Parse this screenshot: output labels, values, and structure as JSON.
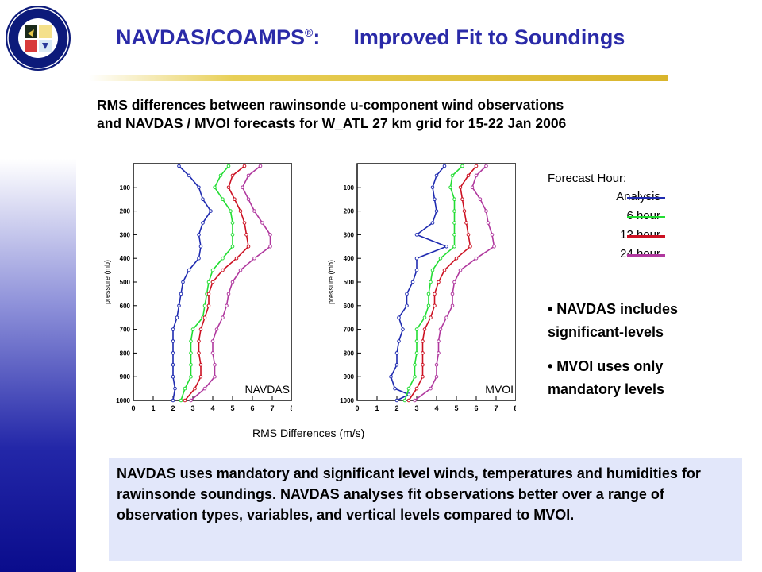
{
  "header": {
    "title_main": "NAVDAS/COAMPS",
    "title_reg": "®",
    "title_colon": ":",
    "title_right": "Improved Fit to Soundings"
  },
  "subtitle": {
    "line1": "RMS differences between rawinsonde u-component wind observations",
    "line2": "and NAVDAS / MVOI forecasts for W_ATL 27 km grid for 15-22 Jan 2006"
  },
  "x_caption": "RMS Differences (m/s)",
  "legend": {
    "title": "Forecast Hour:",
    "items": [
      {
        "label": "Analysis",
        "color": "#1f2bb0"
      },
      {
        "label": "6 hour",
        "color": "#22dd33"
      },
      {
        "label": "12 hour",
        "color": "#cc1122"
      },
      {
        "label": "24 hour",
        "color": "#b0389e"
      }
    ]
  },
  "bullets": [
    {
      "text": "• NAVDAS includes significant-levels"
    },
    {
      "text": "• MVOI uses only mandatory levels"
    }
  ],
  "note": "NAVDAS uses mandatory and significant level winds, temperatures and humidities for rawinsonde soundings.  NAVDAS analyses fit observations better over a range of observation types, variables, and vertical levels compared to MVOI.",
  "chart_data": [
    {
      "type": "line",
      "title": "",
      "label": "NAVDAS",
      "ylabel": "pressure (mb)",
      "xlabel": "",
      "xlim": [
        0,
        8
      ],
      "ylim": [
        1000,
        0
      ],
      "x_ticks": [
        "0",
        "1",
        "2",
        "3",
        "4",
        "5",
        "6",
        "7",
        "8"
      ],
      "y_ticks": [
        "100",
        "200",
        "300",
        "400",
        "500",
        "600",
        "700",
        "800",
        "900",
        "1000"
      ],
      "series": [
        {
          "color": "#1f2bb0",
          "points": [
            [
              2.3,
              10
            ],
            [
              2.8,
              50
            ],
            [
              3.3,
              100
            ],
            [
              3.5,
              150
            ],
            [
              3.9,
              200
            ],
            [
              3.5,
              250
            ],
            [
              3.3,
              300
            ],
            [
              3.4,
              350
            ],
            [
              3.3,
              400
            ],
            [
              2.8,
              450
            ],
            [
              2.5,
              500
            ],
            [
              2.4,
              550
            ],
            [
              2.3,
              600
            ],
            [
              2.2,
              650
            ],
            [
              2.0,
              700
            ],
            [
              2.0,
              750
            ],
            [
              2.0,
              800
            ],
            [
              2.0,
              850
            ],
            [
              2.0,
              900
            ],
            [
              2.1,
              950
            ],
            [
              2.0,
              1000
            ]
          ]
        },
        {
          "color": "#22dd33",
          "points": [
            [
              4.8,
              10
            ],
            [
              4.4,
              50
            ],
            [
              4.1,
              100
            ],
            [
              4.5,
              150
            ],
            [
              4.9,
              200
            ],
            [
              5.0,
              250
            ],
            [
              5.0,
              300
            ],
            [
              5.0,
              350
            ],
            [
              4.5,
              400
            ],
            [
              4.0,
              450
            ],
            [
              3.8,
              500
            ],
            [
              3.7,
              550
            ],
            [
              3.6,
              600
            ],
            [
              3.5,
              650
            ],
            [
              3.0,
              700
            ],
            [
              2.9,
              750
            ],
            [
              2.9,
              800
            ],
            [
              2.9,
              850
            ],
            [
              2.9,
              900
            ],
            [
              2.6,
              950
            ],
            [
              2.4,
              1000
            ]
          ]
        },
        {
          "color": "#cc1122",
          "points": [
            [
              5.6,
              10
            ],
            [
              5.0,
              50
            ],
            [
              4.8,
              100
            ],
            [
              5.1,
              150
            ],
            [
              5.4,
              200
            ],
            [
              5.6,
              250
            ],
            [
              5.7,
              300
            ],
            [
              5.8,
              350
            ],
            [
              5.2,
              400
            ],
            [
              4.5,
              450
            ],
            [
              4.0,
              500
            ],
            [
              3.8,
              550
            ],
            [
              3.8,
              600
            ],
            [
              3.6,
              650
            ],
            [
              3.4,
              700
            ],
            [
              3.3,
              750
            ],
            [
              3.3,
              800
            ],
            [
              3.4,
              850
            ],
            [
              3.4,
              900
            ],
            [
              3.1,
              950
            ],
            [
              2.6,
              1000
            ]
          ]
        },
        {
          "color": "#b0389e",
          "points": [
            [
              6.4,
              10
            ],
            [
              5.8,
              50
            ],
            [
              5.5,
              100
            ],
            [
              5.8,
              150
            ],
            [
              6.1,
              200
            ],
            [
              6.5,
              250
            ],
            [
              6.9,
              300
            ],
            [
              6.9,
              350
            ],
            [
              6.1,
              400
            ],
            [
              5.4,
              450
            ],
            [
              5.0,
              500
            ],
            [
              4.8,
              550
            ],
            [
              4.7,
              600
            ],
            [
              4.5,
              650
            ],
            [
              4.2,
              700
            ],
            [
              4.0,
              750
            ],
            [
              4.0,
              800
            ],
            [
              4.1,
              850
            ],
            [
              4.1,
              900
            ],
            [
              3.6,
              950
            ],
            [
              2.9,
              1000
            ]
          ]
        }
      ]
    },
    {
      "type": "line",
      "title": "",
      "label": "MVOI",
      "ylabel": "pressure (mb)",
      "xlabel": "",
      "xlim": [
        0,
        8
      ],
      "ylim": [
        1000,
        0
      ],
      "x_ticks": [
        "0",
        "1",
        "2",
        "3",
        "4",
        "5",
        "6",
        "7",
        "8"
      ],
      "y_ticks": [
        "100",
        "200",
        "300",
        "400",
        "500",
        "600",
        "700",
        "800",
        "900",
        "1000"
      ],
      "series": [
        {
          "color": "#1f2bb0",
          "points": [
            [
              4.4,
              10
            ],
            [
              4.0,
              50
            ],
            [
              3.8,
              100
            ],
            [
              3.9,
              150
            ],
            [
              4.0,
              200
            ],
            [
              3.8,
              250
            ],
            [
              3.0,
              300
            ],
            [
              4.5,
              350
            ],
            [
              3.0,
              400
            ],
            [
              3.0,
              450
            ],
            [
              2.8,
              500
            ],
            [
              2.5,
              550
            ],
            [
              2.5,
              600
            ],
            [
              2.1,
              650
            ],
            [
              2.3,
              700
            ],
            [
              2.1,
              750
            ],
            [
              2.0,
              800
            ],
            [
              2.0,
              850
            ],
            [
              1.7,
              900
            ],
            [
              1.9,
              950
            ],
            [
              2.6,
              975
            ],
            [
              2.0,
              1000
            ]
          ]
        },
        {
          "color": "#22dd33",
          "points": [
            [
              5.3,
              10
            ],
            [
              4.8,
              50
            ],
            [
              4.7,
              100
            ],
            [
              4.9,
              150
            ],
            [
              4.9,
              200
            ],
            [
              4.9,
              250
            ],
            [
              4.9,
              300
            ],
            [
              4.9,
              350
            ],
            [
              4.2,
              400
            ],
            [
              3.8,
              450
            ],
            [
              3.7,
              500
            ],
            [
              3.6,
              550
            ],
            [
              3.6,
              600
            ],
            [
              3.4,
              650
            ],
            [
              3.0,
              700
            ],
            [
              3.0,
              750
            ],
            [
              3.0,
              800
            ],
            [
              2.9,
              850
            ],
            [
              2.9,
              900
            ],
            [
              2.6,
              950
            ],
            [
              2.4,
              1000
            ]
          ]
        },
        {
          "color": "#cc1122",
          "points": [
            [
              6.0,
              10
            ],
            [
              5.6,
              50
            ],
            [
              5.2,
              100
            ],
            [
              5.3,
              150
            ],
            [
              5.4,
              200
            ],
            [
              5.5,
              250
            ],
            [
              5.6,
              300
            ],
            [
              5.7,
              350
            ],
            [
              5.0,
              400
            ],
            [
              4.4,
              450
            ],
            [
              4.1,
              500
            ],
            [
              3.9,
              550
            ],
            [
              3.9,
              600
            ],
            [
              3.7,
              650
            ],
            [
              3.4,
              700
            ],
            [
              3.3,
              750
            ],
            [
              3.3,
              800
            ],
            [
              3.3,
              850
            ],
            [
              3.3,
              900
            ],
            [
              3.0,
              950
            ],
            [
              2.6,
              1000
            ]
          ]
        },
        {
          "color": "#b0389e",
          "points": [
            [
              6.5,
              10
            ],
            [
              6.0,
              50
            ],
            [
              5.8,
              100
            ],
            [
              6.2,
              150
            ],
            [
              6.5,
              200
            ],
            [
              6.6,
              250
            ],
            [
              6.8,
              300
            ],
            [
              6.9,
              350
            ],
            [
              6.0,
              400
            ],
            [
              5.2,
              450
            ],
            [
              4.9,
              500
            ],
            [
              4.8,
              550
            ],
            [
              4.8,
              600
            ],
            [
              4.5,
              650
            ],
            [
              4.2,
              700
            ],
            [
              4.1,
              750
            ],
            [
              4.1,
              800
            ],
            [
              4.0,
              850
            ],
            [
              4.0,
              900
            ],
            [
              3.7,
              950
            ],
            [
              2.9,
              1000
            ]
          ]
        }
      ]
    }
  ]
}
